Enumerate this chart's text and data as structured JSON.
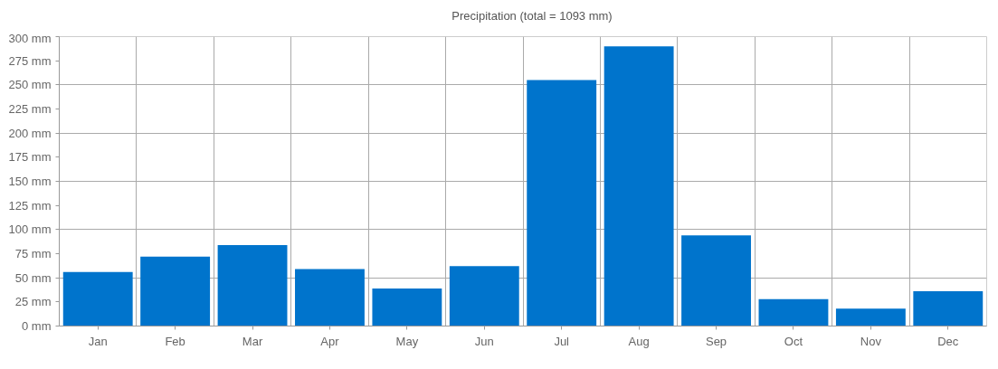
{
  "chart_data": {
    "type": "bar",
    "categories": [
      "Jan",
      "Feb",
      "Mar",
      "Apr",
      "May",
      "Jun",
      "Jul",
      "Aug",
      "Sep",
      "Oct",
      "Nov",
      "Dec"
    ],
    "series": [
      {
        "name": "Precipitation (total = 1093 mm)",
        "color": "#0074cc",
        "values": [
          56,
          72,
          84,
          59,
          39,
          62,
          255,
          290,
          94,
          28,
          18,
          36
        ]
      }
    ],
    "ylim": [
      0,
      300
    ],
    "yticks": [
      {
        "value": 0,
        "label": "0 mm"
      },
      {
        "value": 25,
        "label": "25 mm"
      },
      {
        "value": 50,
        "label": "50 mm"
      },
      {
        "value": 75,
        "label": "75 mm"
      },
      {
        "value": 100,
        "label": "100 mm"
      },
      {
        "value": 125,
        "label": "125 mm"
      },
      {
        "value": 150,
        "label": "150 mm"
      },
      {
        "value": 175,
        "label": "175 mm"
      },
      {
        "value": 200,
        "label": "200 mm"
      },
      {
        "value": 225,
        "label": "225 mm"
      },
      {
        "value": 250,
        "label": "250 mm"
      },
      {
        "value": 275,
        "label": "275 mm"
      },
      {
        "value": 300,
        "label": "300 mm"
      }
    ],
    "grid": true,
    "legend": "top"
  }
}
